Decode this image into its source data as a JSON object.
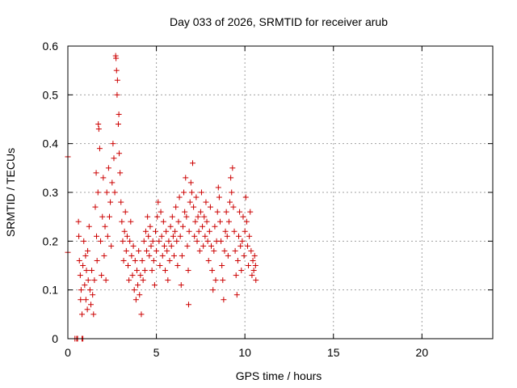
{
  "chart_data": {
    "type": "scatter",
    "title": "Day 033 of 2026, SRMTID for receiver arub",
    "xlabel": "GPS time / hours",
    "ylabel": "SRMTID / TECUs",
    "xlim": [
      0,
      24
    ],
    "ylim": [
      0,
      0.6
    ],
    "xticks": [
      0,
      5,
      10,
      15,
      20
    ],
    "xtick_labels": [
      "0",
      "5",
      "10",
      "15",
      "20"
    ],
    "yticks": [
      0,
      0.1,
      0.2,
      0.3,
      0.4,
      0.5,
      0.6
    ],
    "ytick_labels": [
      "0",
      "0.1",
      "0.2",
      "0.3",
      "0.4",
      "0.5",
      "0.6"
    ],
    "grid": true,
    "marker": "+",
    "marker_color": "#cc0000",
    "series": [
      {
        "name": "SRMTID",
        "points": [
          [
            0.0,
            0.373
          ],
          [
            0.0,
            0.177
          ],
          [
            0.4,
            0.0
          ],
          [
            0.5,
            0.0
          ],
          [
            0.55,
            0.0
          ],
          [
            0.8,
            0.0
          ],
          [
            0.85,
            0.0
          ],
          [
            0.6,
            0.24
          ],
          [
            0.62,
            0.21
          ],
          [
            0.65,
            0.16
          ],
          [
            0.7,
            0.13
          ],
          [
            0.72,
            0.08
          ],
          [
            0.75,
            0.1
          ],
          [
            0.8,
            0.05
          ],
          [
            0.85,
            0.15
          ],
          [
            0.9,
            0.2
          ],
          [
            0.95,
            0.11
          ],
          [
            1.0,
            0.17
          ],
          [
            1.02,
            0.08
          ],
          [
            1.05,
            0.14
          ],
          [
            1.1,
            0.06
          ],
          [
            1.12,
            0.18
          ],
          [
            1.15,
            0.12
          ],
          [
            1.2,
            0.23
          ],
          [
            1.25,
            0.1
          ],
          [
            1.3,
            0.07
          ],
          [
            1.35,
            0.14
          ],
          [
            1.4,
            0.09
          ],
          [
            1.45,
            0.05
          ],
          [
            1.5,
            0.12
          ],
          [
            1.55,
            0.27
          ],
          [
            1.6,
            0.34
          ],
          [
            1.62,
            0.21
          ],
          [
            1.65,
            0.16
          ],
          [
            1.7,
            0.3
          ],
          [
            1.72,
            0.44
          ],
          [
            1.75,
            0.43
          ],
          [
            1.8,
            0.39
          ],
          [
            1.85,
            0.2
          ],
          [
            1.9,
            0.13
          ],
          [
            1.95,
            0.25
          ],
          [
            2.0,
            0.33
          ],
          [
            2.05,
            0.17
          ],
          [
            2.1,
            0.23
          ],
          [
            2.15,
            0.12
          ],
          [
            2.2,
            0.3
          ],
          [
            2.25,
            0.21
          ],
          [
            2.3,
            0.35
          ],
          [
            2.35,
            0.25
          ],
          [
            2.4,
            0.28
          ],
          [
            2.45,
            0.19
          ],
          [
            2.5,
            0.32
          ],
          [
            2.55,
            0.4
          ],
          [
            2.6,
            0.37
          ],
          [
            2.65,
            0.3
          ],
          [
            2.7,
            0.58
          ],
          [
            2.72,
            0.575
          ],
          [
            2.75,
            0.55
          ],
          [
            2.78,
            0.5
          ],
          [
            2.8,
            0.53
          ],
          [
            2.85,
            0.44
          ],
          [
            2.88,
            0.46
          ],
          [
            2.9,
            0.38
          ],
          [
            2.95,
            0.34
          ],
          [
            3.0,
            0.28
          ],
          [
            3.05,
            0.24
          ],
          [
            3.1,
            0.2
          ],
          [
            3.15,
            0.16
          ],
          [
            3.2,
            0.22
          ],
          [
            3.25,
            0.26
          ],
          [
            3.3,
            0.18
          ],
          [
            3.35,
            0.21
          ],
          [
            3.4,
            0.15
          ],
          [
            3.45,
            0.12
          ],
          [
            3.5,
            0.2
          ],
          [
            3.55,
            0.24
          ],
          [
            3.6,
            0.17
          ],
          [
            3.65,
            0.13
          ],
          [
            3.7,
            0.19
          ],
          [
            3.75,
            0.1
          ],
          [
            3.8,
            0.16
          ],
          [
            3.85,
            0.08
          ],
          [
            3.9,
            0.14
          ],
          [
            3.95,
            0.11
          ],
          [
            4.0,
            0.18
          ],
          [
            4.05,
            0.09
          ],
          [
            4.1,
            0.13
          ],
          [
            4.15,
            0.05
          ],
          [
            4.2,
            0.16
          ],
          [
            4.25,
            0.12
          ],
          [
            4.3,
            0.2
          ],
          [
            4.35,
            0.14
          ],
          [
            4.4,
            0.22
          ],
          [
            4.45,
            0.18
          ],
          [
            4.5,
            0.25
          ],
          [
            4.55,
            0.21
          ],
          [
            4.6,
            0.17
          ],
          [
            4.65,
            0.23
          ],
          [
            4.7,
            0.19
          ],
          [
            4.75,
            0.14
          ],
          [
            4.8,
            0.2
          ],
          [
            4.85,
            0.16
          ],
          [
            4.9,
            0.11
          ],
          [
            4.95,
            0.22
          ],
          [
            5.0,
            0.18
          ],
          [
            5.05,
            0.25
          ],
          [
            5.1,
            0.28
          ],
          [
            5.15,
            0.2
          ],
          [
            5.2,
            0.15
          ],
          [
            5.25,
            0.26
          ],
          [
            5.3,
            0.21
          ],
          [
            5.35,
            0.17
          ],
          [
            5.4,
            0.24
          ],
          [
            5.45,
            0.19
          ],
          [
            5.5,
            0.14
          ],
          [
            5.55,
            0.22
          ],
          [
            5.6,
            0.18
          ],
          [
            5.65,
            0.12
          ],
          [
            5.7,
            0.2
          ],
          [
            5.75,
            0.16
          ],
          [
            5.8,
            0.23
          ],
          [
            5.85,
            0.19
          ],
          [
            5.9,
            0.25
          ],
          [
            5.95,
            0.21
          ],
          [
            6.0,
            0.17
          ],
          [
            6.05,
            0.22
          ],
          [
            6.1,
            0.27
          ],
          [
            6.15,
            0.2
          ],
          [
            6.2,
            0.15
          ],
          [
            6.25,
            0.24
          ],
          [
            6.3,
            0.29
          ],
          [
            6.35,
            0.21
          ],
          [
            6.4,
            0.11
          ],
          [
            6.45,
            0.17
          ],
          [
            6.5,
            0.23
          ],
          [
            6.55,
            0.3
          ],
          [
            6.6,
            0.26
          ],
          [
            6.65,
            0.33
          ],
          [
            6.7,
            0.25
          ],
          [
            6.75,
            0.19
          ],
          [
            6.8,
            0.14
          ],
          [
            6.82,
            0.07
          ],
          [
            6.85,
            0.22
          ],
          [
            6.9,
            0.28
          ],
          [
            6.95,
            0.32
          ],
          [
            7.0,
            0.3
          ],
          [
            7.05,
            0.36
          ],
          [
            7.1,
            0.27
          ],
          [
            7.15,
            0.21
          ],
          [
            7.2,
            0.24
          ],
          [
            7.25,
            0.29
          ],
          [
            7.3,
            0.2
          ],
          [
            7.35,
            0.25
          ],
          [
            7.4,
            0.22
          ],
          [
            7.45,
            0.18
          ],
          [
            7.5,
            0.26
          ],
          [
            7.55,
            0.3
          ],
          [
            7.6,
            0.23
          ],
          [
            7.65,
            0.19
          ],
          [
            7.7,
            0.25
          ],
          [
            7.75,
            0.21
          ],
          [
            7.8,
            0.28
          ],
          [
            7.85,
            0.24
          ],
          [
            7.9,
            0.2
          ],
          [
            7.95,
            0.16
          ],
          [
            8.0,
            0.22
          ],
          [
            8.05,
            0.27
          ],
          [
            8.1,
            0.19
          ],
          [
            8.15,
            0.14
          ],
          [
            8.2,
            0.1
          ],
          [
            8.25,
            0.18
          ],
          [
            8.3,
            0.23
          ],
          [
            8.35,
            0.12
          ],
          [
            8.4,
            0.2
          ],
          [
            8.45,
            0.26
          ],
          [
            8.5,
            0.31
          ],
          [
            8.55,
            0.29
          ],
          [
            8.6,
            0.24
          ],
          [
            8.65,
            0.2
          ],
          [
            8.7,
            0.15
          ],
          [
            8.75,
            0.12
          ],
          [
            8.8,
            0.08
          ],
          [
            8.85,
            0.18
          ],
          [
            8.9,
            0.22
          ],
          [
            8.95,
            0.26
          ],
          [
            9.0,
            0.21
          ],
          [
            9.05,
            0.17
          ],
          [
            9.1,
            0.24
          ],
          [
            9.15,
            0.28
          ],
          [
            9.2,
            0.33
          ],
          [
            9.25,
            0.3
          ],
          [
            9.3,
            0.35
          ],
          [
            9.35,
            0.27
          ],
          [
            9.4,
            0.22
          ],
          [
            9.45,
            0.18
          ],
          [
            9.5,
            0.13
          ],
          [
            9.55,
            0.09
          ],
          [
            9.6,
            0.16
          ],
          [
            9.65,
            0.21
          ],
          [
            9.7,
            0.26
          ],
          [
            9.75,
            0.19
          ],
          [
            9.8,
            0.14
          ],
          [
            9.85,
            0.2
          ],
          [
            9.9,
            0.25
          ],
          [
            9.95,
            0.17
          ],
          [
            10.0,
            0.22
          ],
          [
            10.05,
            0.29
          ],
          [
            10.1,
            0.24
          ],
          [
            10.15,
            0.19
          ],
          [
            10.2,
            0.15
          ],
          [
            10.25,
            0.21
          ],
          [
            10.3,
            0.26
          ],
          [
            10.35,
            0.18
          ],
          [
            10.4,
            0.13
          ],
          [
            10.45,
            0.16
          ],
          [
            10.5,
            0.14
          ],
          [
            10.55,
            0.17
          ],
          [
            10.6,
            0.15
          ],
          [
            10.62,
            0.12
          ]
        ]
      }
    ]
  }
}
